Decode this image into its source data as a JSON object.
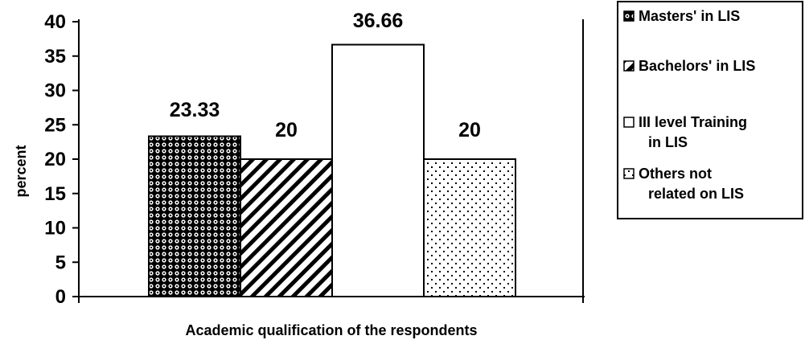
{
  "chart_data": {
    "type": "bar",
    "title": "",
    "xlabel": "Academic qualification of the respondents",
    "ylabel": "percent",
    "ylim": [
      0,
      40
    ],
    "yticks": [
      "0",
      "5",
      "10",
      "15",
      "20",
      "25",
      "30",
      "35",
      "40"
    ],
    "grid": false,
    "legend_position": "right",
    "series": [
      {
        "name": "Masters' in LIS",
        "value": 23.33,
        "label": "23.33",
        "pattern": "dots-dense"
      },
      {
        "name": "Bachelors' in LIS",
        "value": 20,
        "label": "20",
        "pattern": "diagonal-stripes"
      },
      {
        "name": "III level Training in LIS",
        "value": 36.66,
        "label": "36.66",
        "pattern": "none"
      },
      {
        "name": "Others not related on LIS",
        "value": 20,
        "label": "20",
        "pattern": "dots-sparse"
      }
    ],
    "legend": [
      {
        "lines": [
          "Masters' in LIS"
        ]
      },
      {
        "lines": [
          "Bachelors' in LIS"
        ]
      },
      {
        "lines": [
          "III level Training",
          "in LIS"
        ]
      },
      {
        "lines": [
          "Others not",
          "related on LIS"
        ]
      }
    ]
  }
}
